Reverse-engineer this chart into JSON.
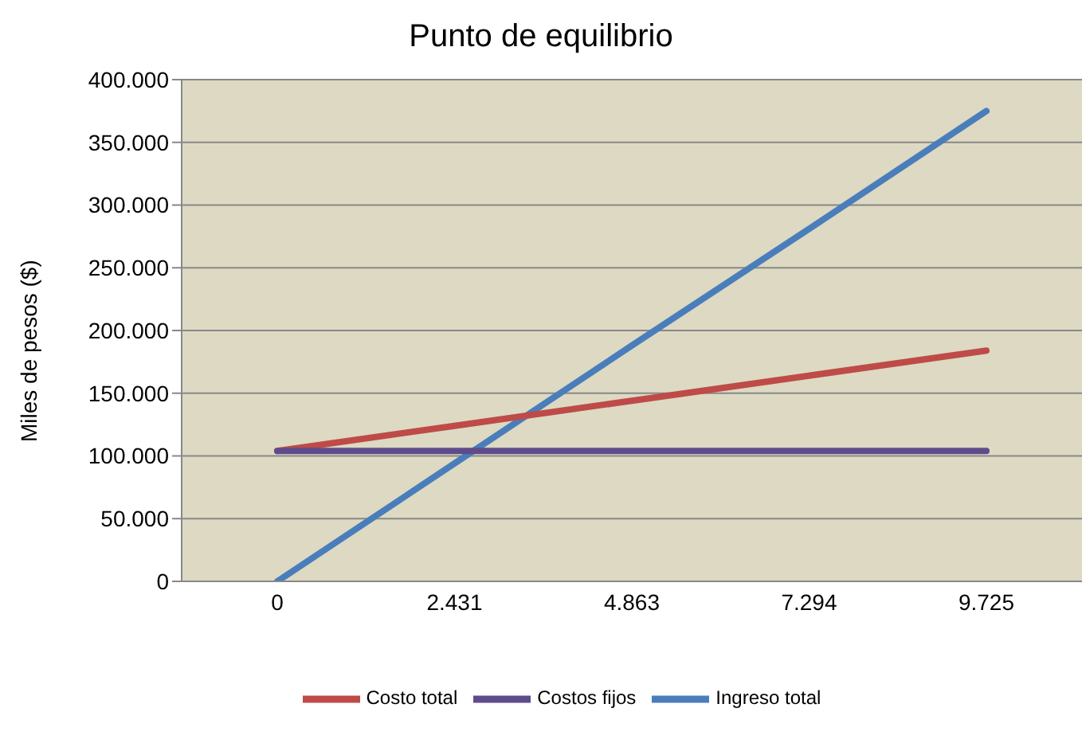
{
  "chart_data": {
    "type": "line",
    "title": "Punto de equilibrio",
    "ylabel": "Miles  de pesos  ($)",
    "categories": [
      "0",
      "2.431",
      "4.863",
      "7.294",
      "9.725"
    ],
    "series": [
      {
        "name": "Ingreso total",
        "color": "#4a7ebb",
        "values": [
          0,
          94000,
          188000,
          281000,
          375000
        ]
      },
      {
        "name": "Costo total",
        "color": "#be4b48",
        "values": [
          104000,
          124000,
          144000,
          164000,
          184000
        ]
      },
      {
        "name": "Costos fijos",
        "color": "#5f4b8b",
        "values": [
          104000,
          104000,
          104000,
          104000,
          104000
        ]
      }
    ],
    "ylim": [
      0,
      400000
    ],
    "yticks": [
      0,
      {
        "value": 50000,
        "label": "50.000"
      },
      {
        "value": 100000,
        "label": "100.000"
      },
      {
        "value": 150000,
        "label": "150.000"
      },
      {
        "value": 200000,
        "label": "200.000"
      },
      {
        "value": 250000,
        "label": "250.000"
      },
      {
        "value": 300000,
        "label": "300.000"
      },
      {
        "value": 350000,
        "label": "350.000"
      },
      {
        "value": 400000,
        "label": "400.000"
      }
    ],
    "grid": "y",
    "legend": "bottom",
    "marker": "none",
    "line_style": "solid"
  }
}
